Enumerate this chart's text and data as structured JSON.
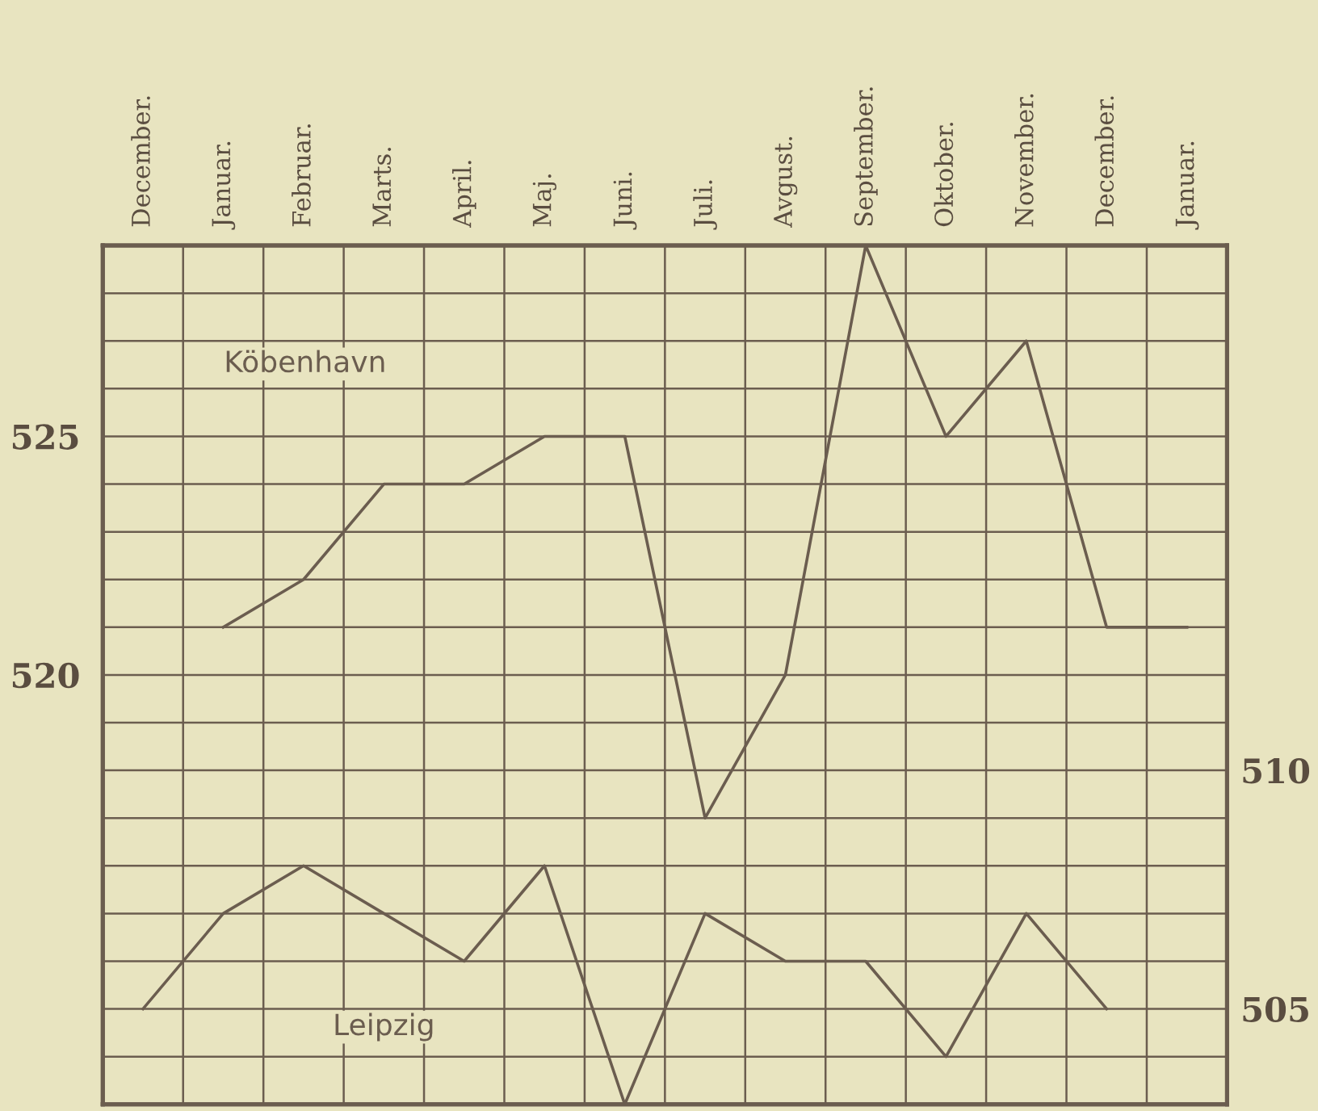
{
  "chart_data": {
    "type": "line",
    "categories": [
      "December.",
      "Januar.",
      "Februar.",
      "Marts.",
      "April.",
      "Maj.",
      "Juni.",
      "Juli.",
      "Avgust.",
      "September.",
      "Oktober.",
      "November.",
      "December.",
      "Januar."
    ],
    "series": [
      {
        "color": "#6b5d4f",
        "values": [
          null,
          521,
          522,
          524,
          524,
          525,
          525,
          517,
          520,
          529,
          525,
          527,
          521,
          521
        ]
      },
      {
        "color": "#6b5d4f",
        "axis": "y2",
        "values": [
          505,
          507,
          508,
          507,
          506,
          508,
          503,
          507,
          506,
          506,
          504,
          507,
          505,
          null
        ]
      }
    ],
    "ylim": [
      511,
      529
    ],
    "yticks": [
      {
        "value": 511,
        "label": null
      },
      {
        "value": 512,
        "label": null
      },
      {
        "value": 513,
        "label": null
      },
      {
        "value": 514,
        "label": null
      },
      {
        "value": 515,
        "label": null
      },
      {
        "value": 516,
        "label": null
      },
      {
        "value": 517,
        "label": null
      },
      {
        "value": 518,
        "label": null
      },
      {
        "value": 519,
        "label": null
      },
      520,
      {
        "value": 521,
        "label": null
      },
      {
        "value": 522,
        "label": null
      },
      {
        "value": 523,
        "label": null
      },
      {
        "value": 524,
        "label": null
      },
      525,
      {
        "value": 526,
        "label": null
      },
      {
        "value": 527,
        "label": null
      },
      {
        "value": 528,
        "label": null
      },
      {
        "value": 529,
        "label": null
      }
    ],
    "y2lim": [
      503,
      521
    ],
    "y2ticks": [
      505,
      510
    ],
    "annotations": [
      "Köbenhavn",
      "Leipzig"
    ],
    "grid": true,
    "marker": "none",
    "line_style": "solid"
  }
}
